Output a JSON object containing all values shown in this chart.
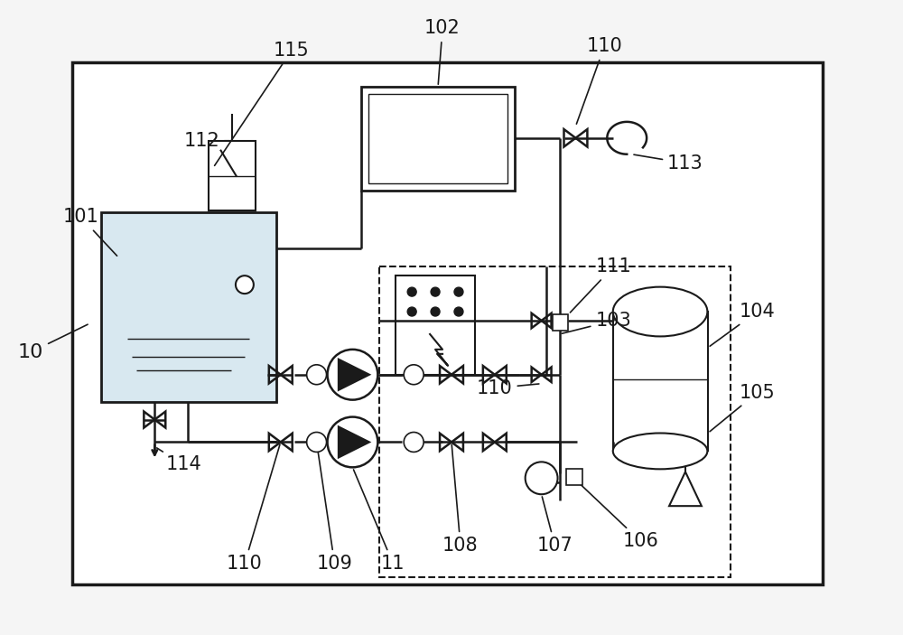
{
  "bg_color": "#f5f5f5",
  "fig_width": 10.0,
  "fig_height": 7.03,
  "line_color": "#1a1a1a",
  "lw_main": 1.8,
  "lw_thin": 1.2
}
